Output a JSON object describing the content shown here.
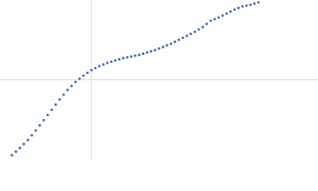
{
  "chart_data": {
    "type": "scatter",
    "color": "#4a6fb5",
    "xlim": [
      -1.15,
      2.85
    ],
    "ylim": [
      -1,
      1
    ],
    "x": [
      -1.0,
      -0.95,
      -0.9,
      -0.85,
      -0.8,
      -0.75,
      -0.7,
      -0.65,
      -0.6,
      -0.55,
      -0.5,
      -0.45,
      -0.4,
      -0.35,
      -0.3,
      -0.25,
      -0.2,
      -0.15,
      -0.1,
      -0.05,
      0.0,
      0.05,
      0.1,
      0.15,
      0.2,
      0.25,
      0.3,
      0.35,
      0.4,
      0.45,
      0.5,
      0.55,
      0.6,
      0.65,
      0.7,
      0.75,
      0.8,
      0.85,
      0.9,
      0.95,
      1.0,
      1.05,
      1.1,
      1.15,
      1.2,
      1.25,
      1.3,
      1.35,
      1.4,
      1.45,
      1.5,
      1.55,
      1.6,
      1.65,
      1.7,
      1.75,
      1.8,
      1.85,
      1.9,
      1.95,
      2.0,
      2.05,
      2.1
    ],
    "values": [
      -0.95,
      -0.905,
      -0.86,
      -0.81,
      -0.76,
      -0.7,
      -0.64,
      -0.575,
      -0.51,
      -0.445,
      -0.38,
      -0.315,
      -0.25,
      -0.19,
      -0.13,
      -0.08,
      -0.03,
      0.01,
      0.05,
      0.085,
      0.12,
      0.145,
      0.17,
      0.19,
      0.21,
      0.225,
      0.24,
      0.255,
      0.27,
      0.28,
      0.29,
      0.3,
      0.31,
      0.325,
      0.34,
      0.355,
      0.37,
      0.39,
      0.41,
      0.43,
      0.45,
      0.475,
      0.5,
      0.525,
      0.55,
      0.575,
      0.6,
      0.63,
      0.66,
      0.7,
      0.74,
      0.76,
      0.78,
      0.805,
      0.83,
      0.855,
      0.88,
      0.9,
      0.92,
      0.93,
      0.94,
      0.955,
      0.97
    ]
  }
}
